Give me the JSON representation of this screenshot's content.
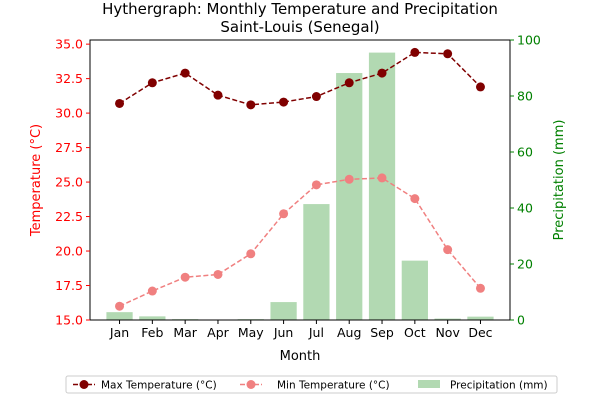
{
  "chart_data": {
    "type": "bar+line",
    "title": "Hythergraph: Monthly Temperature and Precipitation",
    "subtitle": "Saint-Louis (Senegal)",
    "xlabel": "Month",
    "ylabel_left": "Temperature (°C)",
    "ylabel_right": "Precipitation (mm)",
    "categories": [
      "Jan",
      "Feb",
      "Mar",
      "Apr",
      "May",
      "Jun",
      "Jul",
      "Aug",
      "Sep",
      "Oct",
      "Nov",
      "Dec"
    ],
    "ylim_left": [
      15.0,
      35.3
    ],
    "ylim_right": [
      0,
      100
    ],
    "yticks_left": [
      "15.0",
      "17.5",
      "20.0",
      "22.5",
      "25.0",
      "27.5",
      "30.0",
      "32.5",
      "35.0"
    ],
    "yticks_right": [
      "0",
      "20",
      "40",
      "60",
      "80",
      "100"
    ],
    "series": [
      {
        "name": "Max Temperature (°C)",
        "kind": "line",
        "axis": "left",
        "color": "#800000",
        "values": [
          30.7,
          32.2,
          32.9,
          31.3,
          30.6,
          30.8,
          31.2,
          32.2,
          32.9,
          34.4,
          34.3,
          31.9
        ]
      },
      {
        "name": "Min Temperature (°C)",
        "kind": "line",
        "axis": "left",
        "color": "#f08080",
        "values": [
          16.0,
          17.1,
          18.1,
          18.3,
          19.8,
          22.7,
          24.8,
          25.2,
          25.3,
          23.8,
          20.1,
          17.3
        ]
      },
      {
        "name": "Precipitation (mm)",
        "kind": "bar",
        "axis": "right",
        "color": "#b2d9b2",
        "values": [
          2.8,
          1.3,
          0.3,
          0.1,
          0.3,
          6.4,
          41.4,
          88.2,
          95.5,
          21.2,
          0.5,
          1.2
        ]
      }
    ],
    "left_axis_color": "#ff0000",
    "right_axis_color": "#008000",
    "legend_position": "bottom-center"
  }
}
